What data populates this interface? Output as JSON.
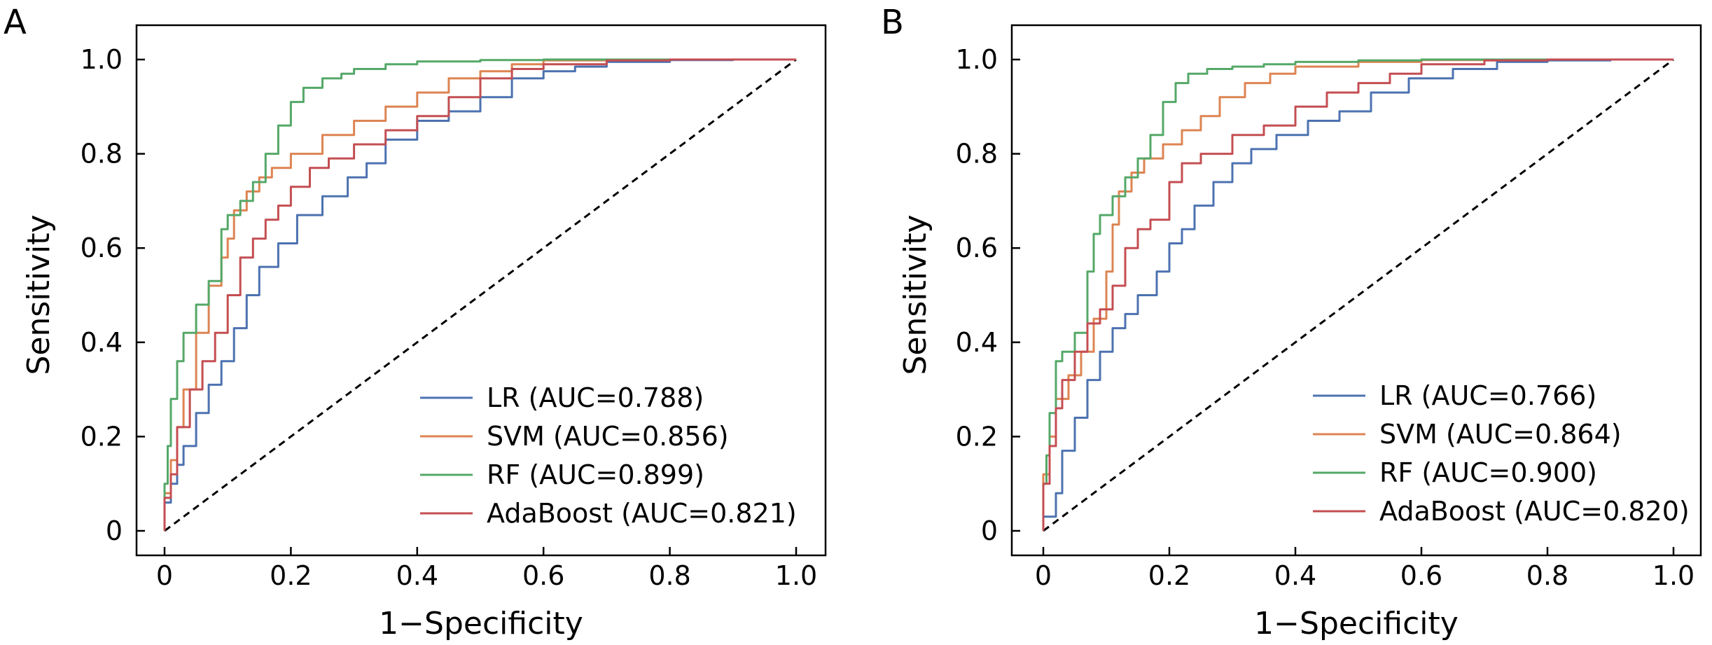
{
  "chart_data": [
    {
      "panel_label": "A",
      "type": "line",
      "xlabel": "1−Specificity",
      "ylabel": "Sensitivity",
      "xlim": [
        0,
        1
      ],
      "ylim": [
        0,
        1
      ],
      "xticks": [
        "0",
        "0.2",
        "0.4",
        "0.6",
        "0.8",
        "1.0"
      ],
      "yticks": [
        "0",
        "0.2",
        "0.4",
        "0.6",
        "0.8",
        "1.0"
      ],
      "grid": false,
      "legend_position": "bottom-right",
      "series": [
        {
          "name": "LR (AUC=0.788)",
          "color": "#4c72b0",
          "x": [
            0,
            0.01,
            0.02,
            0.03,
            0.05,
            0.07,
            0.09,
            0.11,
            0.13,
            0.15,
            0.18,
            0.21,
            0.25,
            0.29,
            0.32,
            0.35,
            0.4,
            0.45,
            0.5,
            0.55,
            0.6,
            0.65,
            0.7,
            0.8,
            0.9,
            1.0
          ],
          "y": [
            0,
            0.06,
            0.1,
            0.14,
            0.18,
            0.25,
            0.31,
            0.36,
            0.43,
            0.5,
            0.56,
            0.61,
            0.67,
            0.71,
            0.75,
            0.78,
            0.83,
            0.87,
            0.89,
            0.92,
            0.96,
            0.975,
            0.985,
            0.995,
            0.999,
            1.0
          ]
        },
        {
          "name": "SVM (AUC=0.856)",
          "color": "#dd8452",
          "x": [
            0,
            0.01,
            0.02,
            0.03,
            0.05,
            0.07,
            0.09,
            0.1,
            0.11,
            0.13,
            0.15,
            0.17,
            0.2,
            0.25,
            0.3,
            0.35,
            0.4,
            0.45,
            0.5,
            0.55,
            0.6,
            0.7,
            0.8,
            1.0
          ],
          "y": [
            0,
            0.08,
            0.15,
            0.22,
            0.3,
            0.42,
            0.52,
            0.58,
            0.62,
            0.68,
            0.72,
            0.75,
            0.77,
            0.8,
            0.84,
            0.87,
            0.9,
            0.93,
            0.96,
            0.975,
            0.99,
            0.998,
            1.0,
            1.0
          ]
        },
        {
          "name": "RF (AUC=0.899)",
          "color": "#55a868",
          "x": [
            0,
            0.005,
            0.01,
            0.02,
            0.03,
            0.05,
            0.07,
            0.09,
            0.1,
            0.12,
            0.14,
            0.16,
            0.18,
            0.2,
            0.22,
            0.25,
            0.28,
            0.3,
            0.35,
            0.4,
            0.5,
            0.6,
            0.8,
            1.0
          ],
          "y": [
            0,
            0.1,
            0.18,
            0.28,
            0.36,
            0.42,
            0.48,
            0.53,
            0.64,
            0.67,
            0.7,
            0.74,
            0.8,
            0.86,
            0.91,
            0.94,
            0.96,
            0.97,
            0.98,
            0.99,
            0.996,
            0.999,
            1.0,
            1.0
          ]
        },
        {
          "name": "AdaBoost (AUC=0.821)",
          "color": "#c44e52",
          "x": [
            0,
            0.01,
            0.02,
            0.04,
            0.06,
            0.08,
            0.1,
            0.12,
            0.14,
            0.16,
            0.18,
            0.2,
            0.23,
            0.26,
            0.3,
            0.35,
            0.4,
            0.45,
            0.5,
            0.55,
            0.6,
            0.7,
            0.8,
            1.0
          ],
          "y": [
            0,
            0.07,
            0.12,
            0.22,
            0.3,
            0.36,
            0.42,
            0.5,
            0.58,
            0.62,
            0.66,
            0.69,
            0.73,
            0.77,
            0.79,
            0.82,
            0.85,
            0.88,
            0.92,
            0.96,
            0.98,
            0.99,
            0.998,
            1.0
          ]
        }
      ]
    },
    {
      "panel_label": "B",
      "type": "line",
      "xlabel": "1−Specificity",
      "ylabel": "Sensitivity",
      "xlim": [
        0,
        1
      ],
      "ylim": [
        0,
        1
      ],
      "xticks": [
        "0",
        "0.2",
        "0.4",
        "0.6",
        "0.8",
        "1.0"
      ],
      "yticks": [
        "0",
        "0.2",
        "0.4",
        "0.6",
        "0.8",
        "1.0"
      ],
      "grid": false,
      "legend_position": "bottom-right",
      "series": [
        {
          "name": "LR (AUC=0.766)",
          "color": "#4c72b0",
          "x": [
            0,
            0.02,
            0.03,
            0.05,
            0.07,
            0.09,
            0.11,
            0.13,
            0.15,
            0.18,
            0.2,
            0.22,
            0.24,
            0.27,
            0.3,
            0.33,
            0.37,
            0.42,
            0.47,
            0.52,
            0.58,
            0.65,
            0.72,
            0.8,
            0.9,
            1.0
          ],
          "y": [
            0,
            0.03,
            0.08,
            0.17,
            0.24,
            0.32,
            0.38,
            0.43,
            0.46,
            0.5,
            0.55,
            0.61,
            0.64,
            0.69,
            0.74,
            0.78,
            0.81,
            0.84,
            0.87,
            0.89,
            0.93,
            0.96,
            0.98,
            0.995,
            0.998,
            1.0
          ]
        },
        {
          "name": "SVM (AUC=0.864)",
          "color": "#dd8452",
          "x": [
            0,
            0.01,
            0.02,
            0.04,
            0.06,
            0.08,
            0.1,
            0.11,
            0.12,
            0.14,
            0.16,
            0.19,
            0.22,
            0.25,
            0.28,
            0.32,
            0.36,
            0.4,
            0.5,
            0.6,
            0.7,
            0.8,
            1.0
          ],
          "y": [
            0,
            0.12,
            0.2,
            0.28,
            0.33,
            0.38,
            0.45,
            0.55,
            0.65,
            0.72,
            0.76,
            0.79,
            0.82,
            0.85,
            0.88,
            0.92,
            0.95,
            0.97,
            0.985,
            0.995,
            0.999,
            1.0,
            1.0
          ]
        },
        {
          "name": "RF (AUC=0.900)",
          "color": "#55a868",
          "x": [
            0,
            0.005,
            0.01,
            0.02,
            0.03,
            0.05,
            0.07,
            0.08,
            0.09,
            0.11,
            0.13,
            0.15,
            0.17,
            0.19,
            0.21,
            0.23,
            0.26,
            0.3,
            0.35,
            0.4,
            0.5,
            0.6,
            0.8,
            1.0
          ],
          "y": [
            0,
            0.1,
            0.16,
            0.25,
            0.36,
            0.38,
            0.42,
            0.55,
            0.63,
            0.67,
            0.71,
            0.75,
            0.79,
            0.84,
            0.91,
            0.95,
            0.97,
            0.98,
            0.985,
            0.99,
            0.995,
            0.998,
            1.0,
            1.0
          ]
        },
        {
          "name": "AdaBoost (AUC=0.820)",
          "color": "#c44e52",
          "x": [
            0,
            0.01,
            0.02,
            0.03,
            0.05,
            0.07,
            0.09,
            0.11,
            0.13,
            0.15,
            0.17,
            0.2,
            0.22,
            0.25,
            0.3,
            0.35,
            0.4,
            0.45,
            0.5,
            0.55,
            0.6,
            0.7,
            0.8,
            1.0
          ],
          "y": [
            0,
            0.1,
            0.18,
            0.26,
            0.32,
            0.38,
            0.44,
            0.47,
            0.52,
            0.6,
            0.64,
            0.66,
            0.74,
            0.78,
            0.8,
            0.84,
            0.86,
            0.9,
            0.93,
            0.95,
            0.97,
            0.99,
            0.998,
            1.0
          ]
        }
      ]
    }
  ]
}
